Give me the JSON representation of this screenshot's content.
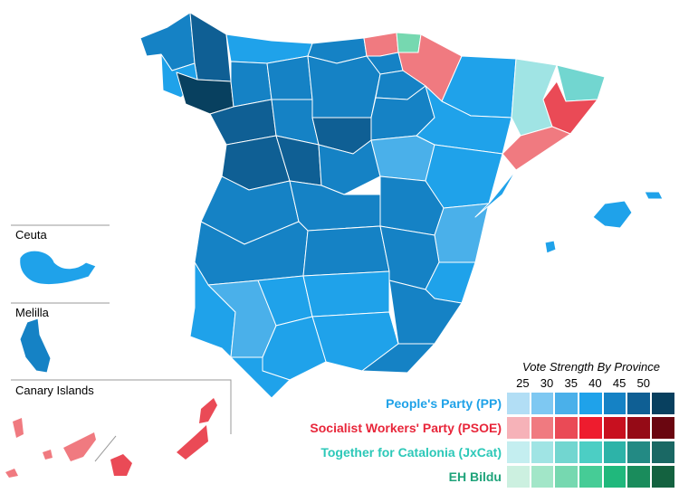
{
  "insets": {
    "ceuta": "Ceuta",
    "melilla": "Melilla",
    "canary": "Canary Islands"
  },
  "legend": {
    "title": "Vote Strength By Province",
    "ticks": [
      "25",
      "30",
      "35",
      "40",
      "45",
      "50"
    ],
    "parties": [
      {
        "name": "People's Party (PP)",
        "color": "#1fa2e8",
        "scale": [
          "#b2def5",
          "#7ec8f2",
          "#4ab0ea",
          "#1fa2ea",
          "#1582c5",
          "#0f5f94",
          "#08405f"
        ]
      },
      {
        "name": "Socialist Workers' Party (PSOE)",
        "color": "#e8263a",
        "scale": [
          "#f6b2b8",
          "#f07a80",
          "#ea4a56",
          "#ee1c2e",
          "#c8101f",
          "#950a16",
          "#6a0610"
        ]
      },
      {
        "name": "Together for Catalonia (JxCat)",
        "color": "#2cc8b8",
        "scale": [
          "#c4eef0",
          "#a0e4e4",
          "#72d6d0",
          "#4ccec4",
          "#2db3a8",
          "#238a84",
          "#1a6864"
        ]
      },
      {
        "name": "EH Bildu",
        "color": "#1fa37a",
        "scale": [
          "#ccf0e0",
          "#a2e6c8",
          "#76d8b0",
          "#46cc96",
          "#20b87c",
          "#1a8c5c",
          "#146240"
        ]
      }
    ]
  }
}
